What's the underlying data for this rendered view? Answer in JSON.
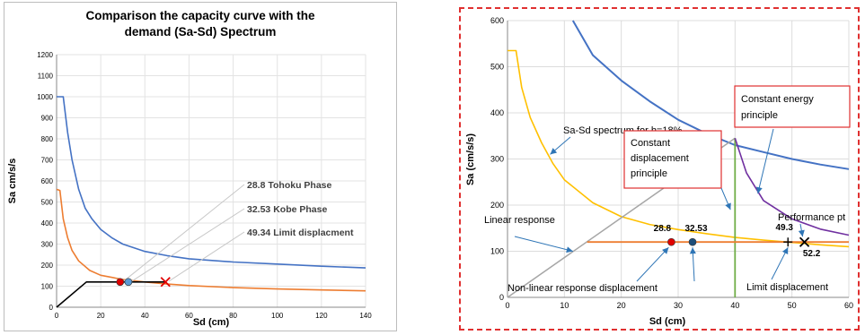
{
  "colors": {
    "blue": "#4472c4",
    "orange": "#ed7d31",
    "yellow": "#ffc000",
    "purple": "#7030a0",
    "green": "#70ad47",
    "gray": "#a6a6a6",
    "red_marker": "#e00000",
    "light_blue_marker": "#5b9bd5",
    "dark_marker": "#1f4e79",
    "box_border": "#e03030",
    "arrow": "#2e75b6"
  },
  "chart_data": [
    {
      "type": "line",
      "title": "Comparison the capacity curve with the demand (Sa-Sd) Spectrum",
      "title_lines": [
        "Comparison the capacity curve with the",
        "demand (Sa-Sd) Spectrum"
      ],
      "xlabel": "Sd (cm)",
      "ylabel": "Sa cm/s/s",
      "xlim": [
        0,
        140
      ],
      "ylim": [
        0,
        1200
      ],
      "xticks": [
        0,
        20,
        40,
        60,
        80,
        100,
        120,
        140
      ],
      "yticks": [
        0,
        100,
        200,
        300,
        400,
        500,
        600,
        700,
        800,
        900,
        1000,
        1100,
        1200
      ],
      "grid": true,
      "series": [
        {
          "color": "blue",
          "x": [
            0,
            3,
            5,
            7,
            10,
            13,
            16,
            20,
            25,
            30,
            40,
            50,
            60,
            80,
            100,
            120,
            140
          ],
          "y": [
            1000,
            1000,
            830,
            700,
            560,
            470,
            420,
            370,
            330,
            300,
            265,
            245,
            230,
            215,
            205,
            195,
            187
          ]
        },
        {
          "color": "orange",
          "x": [
            0,
            1.5,
            3,
            5,
            7,
            10,
            15,
            20,
            30,
            40,
            50,
            60,
            80,
            100,
            120,
            140
          ],
          "y": [
            560,
            555,
            420,
            330,
            270,
            220,
            175,
            152,
            132,
            120,
            110,
            103,
            93,
            87,
            82,
            78
          ]
        },
        {
          "color": "black",
          "x": [
            0,
            13.5,
            49.3
          ],
          "y": [
            0,
            120,
            120
          ]
        }
      ],
      "markers": [
        {
          "label": "28.8 Tohoku Phase",
          "x": 28.8,
          "y": 120,
          "shape": "circle",
          "color": "red_marker"
        },
        {
          "label": "32.53 Kobe Phase",
          "x": 32.53,
          "y": 120,
          "shape": "circle",
          "color": "light_blue_marker"
        },
        {
          "label": "49.34 Limit displacment",
          "x": 49.34,
          "y": 120,
          "shape": "cross",
          "color": "red_marker"
        }
      ]
    },
    {
      "type": "line",
      "title": "",
      "xlabel": "Sd (cm)",
      "ylabel": "Sa (cm/s/s)",
      "xlim": [
        0,
        60
      ],
      "ylim": [
        0,
        600
      ],
      "xticks": [
        0,
        10,
        20,
        30,
        40,
        50,
        60
      ],
      "yticks": [
        0,
        100,
        200,
        300,
        400,
        500,
        600
      ],
      "grid": true,
      "series": [
        {
          "color": "blue",
          "x": [
            11.5,
            15,
            20,
            25,
            30,
            35,
            40,
            45,
            50,
            55,
            60
          ],
          "y": [
            600,
            525,
            470,
            425,
            385,
            355,
            330,
            315,
            300,
            288,
            278
          ]
        },
        {
          "color": "yellow",
          "x": [
            0,
            1.5,
            2.5,
            4,
            6,
            8,
            10,
            15,
            20,
            25,
            30,
            35,
            40,
            45,
            50,
            55,
            60
          ],
          "y": [
            535,
            535,
            455,
            390,
            335,
            290,
            255,
            205,
            175,
            158,
            147,
            138,
            130,
            124,
            119,
            114,
            110
          ]
        },
        {
          "color": "gray",
          "x": [
            0,
            40
          ],
          "y": [
            0,
            345
          ]
        },
        {
          "color": "green",
          "x": [
            40,
            40
          ],
          "y": [
            0,
            345
          ]
        },
        {
          "color": "purple",
          "x": [
            40,
            42,
            45,
            50,
            55,
            60
          ],
          "y": [
            345,
            270,
            210,
            170,
            148,
            135
          ]
        },
        {
          "color": "orange",
          "x": [
            14,
            60
          ],
          "y": [
            120,
            120
          ]
        }
      ],
      "markers": [
        {
          "label": "28.8",
          "x": 28.8,
          "y": 120,
          "shape": "circle",
          "color": "red_marker"
        },
        {
          "label": "32.53",
          "x": 32.53,
          "y": 120,
          "shape": "circle",
          "color": "dark_marker"
        },
        {
          "label": "49.3",
          "x": 49.3,
          "y": 120,
          "shape": "plus",
          "color": "black"
        },
        {
          "label": "52.2",
          "x": 52.2,
          "y": 120,
          "shape": "cross",
          "color": "black"
        }
      ],
      "annotations": {
        "spectrum": "Sa-Sd spectrum for h=18%",
        "linear": "Linear response",
        "constant_disp": [
          "Constant",
          "displacement",
          "principle"
        ],
        "constant_energy": [
          "Constant energy",
          "principle"
        ],
        "performance": "Performance pt",
        "nonlinear": "Non-linear response displacement",
        "limit": "Limit displacement"
      }
    }
  ]
}
